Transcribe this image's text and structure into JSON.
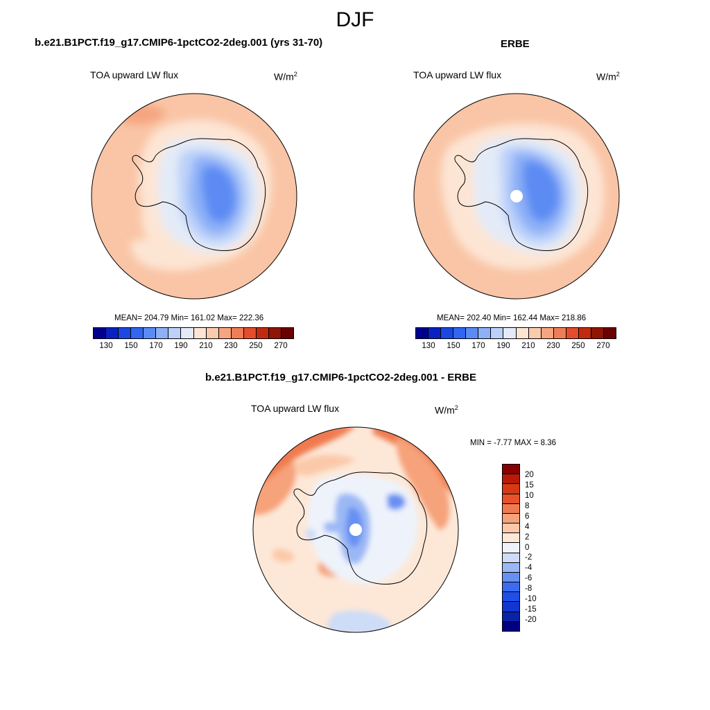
{
  "figure": {
    "title": "DJF"
  },
  "panel_model": {
    "title": "b.e21.B1PCT.f19_g17.CMIP6-1pctCO2-2deg.001 (yrs 31-70)",
    "variable": "TOA upward LW flux",
    "units_base": "W/m",
    "units_exp": "2",
    "stats": "MEAN= 204.79  Min= 161.02  Max= 222.36",
    "colorbar_ticks": [
      "130",
      "150",
      "170",
      "190",
      "210",
      "230",
      "250",
      "270"
    ]
  },
  "panel_obs": {
    "title": "ERBE",
    "variable": "TOA upward LW flux",
    "units_base": "W/m",
    "units_exp": "2",
    "stats": "MEAN= 202.40  Min= 162.44  Max= 218.86",
    "colorbar_ticks": [
      "130",
      "150",
      "170",
      "190",
      "210",
      "230",
      "250",
      "270"
    ]
  },
  "panel_diff": {
    "title": "b.e21.B1PCT.f19_g17.CMIP6-1pctCO2-2deg.001 - ERBE",
    "variable": "TOA upward LW flux",
    "units_base": "W/m",
    "units_exp": "2",
    "stats": "MIN =  -7.77 MAX =   8.36",
    "colorbar_ticks": [
      "20",
      "15",
      "10",
      "8",
      "6",
      "4",
      "2",
      "0",
      "-2",
      "-4",
      "-6",
      "-8",
      "-10",
      "-15",
      "-20"
    ]
  },
  "chart_data": [
    {
      "type": "map",
      "projection": "south-polar stereographic",
      "title": "b.e21.B1PCT.f19_g17.CMIP6-1pctCO2-2deg.001 (yrs 31-70)",
      "variable": "TOA upward LW flux",
      "units": "W/m2",
      "mean": 204.79,
      "min": 161.02,
      "max": 222.36,
      "levels": [
        130,
        140,
        150,
        160,
        170,
        180,
        190,
        200,
        210,
        220,
        230,
        240,
        250,
        260,
        270
      ],
      "colors": [
        "#00008f",
        "#0a21c2",
        "#1a48e0",
        "#3266ee",
        "#5b8bf3",
        "#8db0f7",
        "#bcd1f9",
        "#e3ebf8",
        "#fde5d4",
        "#fbcbae",
        "#f5a580",
        "#ef7d57",
        "#e44c2b",
        "#c22a10",
        "#8f1505",
        "#6a0000"
      ]
    },
    {
      "type": "map",
      "projection": "south-polar stereographic",
      "title": "ERBE",
      "variable": "TOA upward LW flux",
      "units": "W/m2",
      "mean": 202.4,
      "min": 162.44,
      "max": 218.86,
      "levels": [
        130,
        140,
        150,
        160,
        170,
        180,
        190,
        200,
        210,
        220,
        230,
        240,
        250,
        260,
        270
      ],
      "colors": [
        "#00008f",
        "#0a21c2",
        "#1a48e0",
        "#3266ee",
        "#5b8bf3",
        "#8db0f7",
        "#bcd1f9",
        "#e3ebf8",
        "#fde5d4",
        "#fbcbae",
        "#f5a580",
        "#ef7d57",
        "#e44c2b",
        "#c22a10",
        "#8f1505",
        "#6a0000"
      ]
    },
    {
      "type": "map",
      "projection": "south-polar stereographic",
      "title": "b.e21.B1PCT.f19_g17.CMIP6-1pctCO2-2deg.001 - ERBE",
      "variable": "TOA upward LW flux",
      "units": "W/m2",
      "min": -7.77,
      "max": 8.36,
      "levels": [
        -20,
        -15,
        -10,
        -8,
        -6,
        -4,
        -2,
        0,
        2,
        4,
        6,
        8,
        10,
        15,
        20
      ],
      "colors": [
        "#000080",
        "#0a22a8",
        "#1236d0",
        "#1f4fe8",
        "#3a6cf0",
        "#6690f2",
        "#9bb8f5",
        "#cddcf7",
        "#eef3fb",
        "#fde8d8",
        "#fbc9a9",
        "#f6a27a",
        "#f07a50",
        "#e8522b",
        "#d33a15",
        "#b81a08",
        "#8a0000"
      ]
    }
  ]
}
